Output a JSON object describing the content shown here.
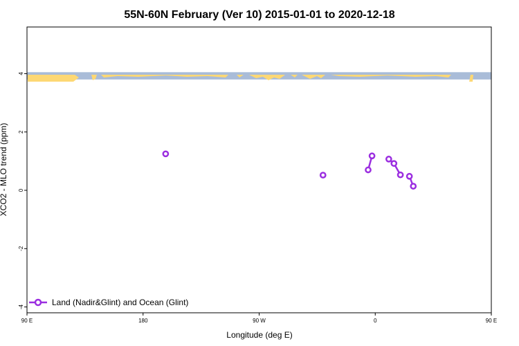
{
  "chart_data": {
    "type": "line",
    "title": "55N-60N February (Ver 10)   2015-01-01 to 2020-12-18",
    "xlabel": "Longitude (deg E)",
    "ylabel": "XCO2 - MLO trend (ppm)",
    "xlim": [
      90,
      450
    ],
    "ylim": [
      -4.2,
      5.6
    ],
    "x_ticks": [
      90,
      180,
      270,
      360,
      450,
      540
    ],
    "x_tick_labels": [
      "90 E",
      "180",
      "90 W",
      "0",
      "90 E",
      "180"
    ],
    "y_ticks": [
      -4,
      -2,
      0,
      2,
      4
    ],
    "y_tick_labels": [
      "-4",
      "-2",
      "0",
      "2",
      "4"
    ],
    "grid": false,
    "legend_position": "bottom-left",
    "series": [
      {
        "name": "Land (Nadir&Glint) and Ocean (Glint)",
        "color": "#9b2ee0",
        "points": [
          {
            "x": -162.5,
            "y": 1.25
          },
          {
            "x": -40.5,
            "y": 0.52
          },
          {
            "x": -5.5,
            "y": 0.7
          },
          {
            "x": -2.5,
            "y": 1.18
          },
          {
            "x": 10.5,
            "y": 1.07
          },
          {
            "x": 14.5,
            "y": 0.92
          },
          {
            "x": 19.5,
            "y": 0.53
          },
          {
            "x": 26.5,
            "y": 0.48
          },
          {
            "x": 29.5,
            "y": 0.14
          }
        ],
        "segments": [
          [
            2,
            3
          ],
          [
            4,
            5
          ],
          [
            5,
            6
          ],
          [
            7,
            8
          ]
        ]
      }
    ],
    "map_strip": {
      "y_range": [
        3.8,
        4.05
      ],
      "ocean_color": "#a9bcd8",
      "land_color": "#fdd874"
    }
  }
}
